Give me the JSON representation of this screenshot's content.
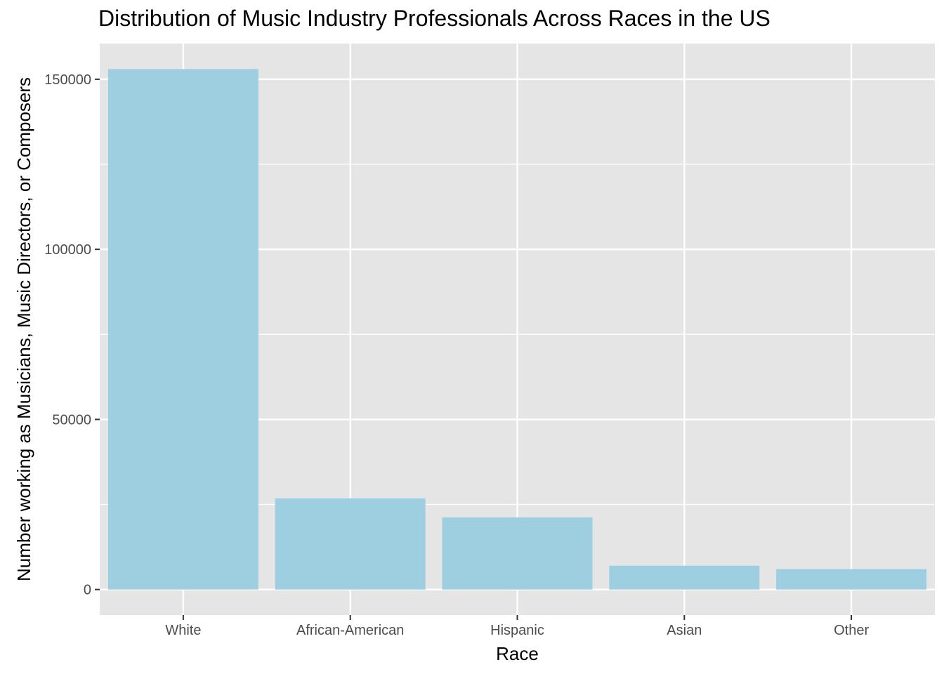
{
  "chart_data": {
    "type": "bar",
    "title": "Distribution of Music Industry Professionals Across Races in the US",
    "xlabel": "Race",
    "ylabel": "Number working as Musicians, Music Directors, or Composers",
    "categories": [
      "White",
      "African-American",
      "Hispanic",
      "Asian",
      "Other"
    ],
    "values": [
      153000,
      26800,
      21200,
      7000,
      6000
    ],
    "ylim": [
      -7500,
      160500
    ],
    "yticks": [
      0,
      50000,
      100000,
      150000
    ],
    "ytick_labels": [
      "0",
      "50000",
      "100000",
      "150000"
    ],
    "grid": true,
    "legend": "none",
    "colors": {
      "bar": "#9ecfe0",
      "panel": "#e5e5e5",
      "grid": "#ffffff"
    }
  }
}
